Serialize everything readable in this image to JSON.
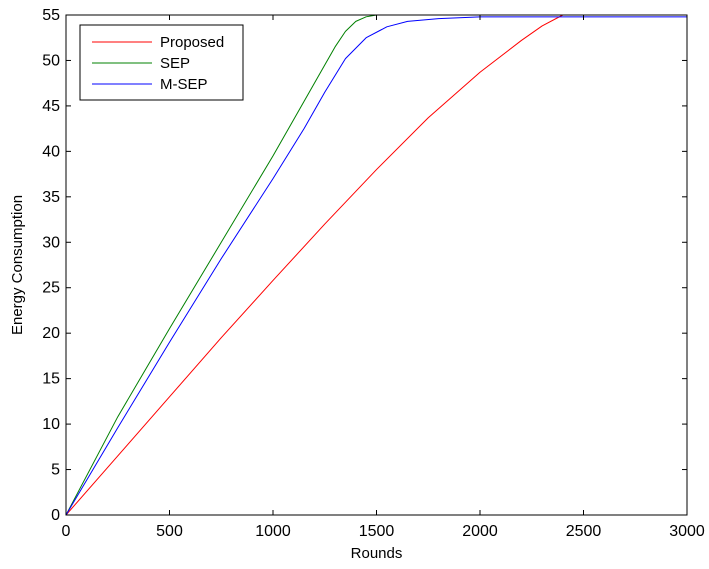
{
  "chart_data": {
    "type": "line",
    "title": "",
    "xlabel": "Rounds",
    "ylabel": "Energy Consumption",
    "xlim": [
      0,
      3000
    ],
    "ylim": [
      0,
      55
    ],
    "xticks": [
      0,
      500,
      1000,
      1500,
      2000,
      2500,
      3000
    ],
    "yticks": [
      0,
      5,
      10,
      15,
      20,
      25,
      30,
      35,
      40,
      45,
      50,
      55
    ],
    "grid": false,
    "legend_position": "top-left",
    "series": [
      {
        "name": "Proposed",
        "color": "#ff0000",
        "points": [
          [
            0,
            0
          ],
          [
            250,
            6.5
          ],
          [
            500,
            13
          ],
          [
            750,
            19.5
          ],
          [
            1000,
            25.8
          ],
          [
            1250,
            32
          ],
          [
            1500,
            38
          ],
          [
            1750,
            43.7
          ],
          [
            2000,
            48.7
          ],
          [
            2200,
            52.2
          ],
          [
            2300,
            53.8
          ],
          [
            2400,
            55
          ],
          [
            3000,
            55
          ]
        ]
      },
      {
        "name": "SEP",
        "color": "#008000",
        "points": [
          [
            0,
            0
          ],
          [
            250,
            10.8
          ],
          [
            500,
            20.5
          ],
          [
            750,
            30
          ],
          [
            1000,
            39.5
          ],
          [
            1150,
            45.5
          ],
          [
            1250,
            49.5
          ],
          [
            1300,
            51.5
          ],
          [
            1350,
            53.2
          ],
          [
            1400,
            54.3
          ],
          [
            1450,
            54.8
          ],
          [
            1500,
            55
          ],
          [
            3000,
            55
          ]
        ]
      },
      {
        "name": "M-SEP",
        "color": "#0000ff",
        "points": [
          [
            0,
            0
          ],
          [
            250,
            9.6
          ],
          [
            500,
            19
          ],
          [
            750,
            28.2
          ],
          [
            1000,
            37
          ],
          [
            1150,
            42.5
          ],
          [
            1250,
            46.5
          ],
          [
            1350,
            50.2
          ],
          [
            1450,
            52.5
          ],
          [
            1550,
            53.7
          ],
          [
            1650,
            54.3
          ],
          [
            1800,
            54.6
          ],
          [
            2000,
            54.8
          ],
          [
            3000,
            54.8
          ]
        ]
      }
    ]
  }
}
